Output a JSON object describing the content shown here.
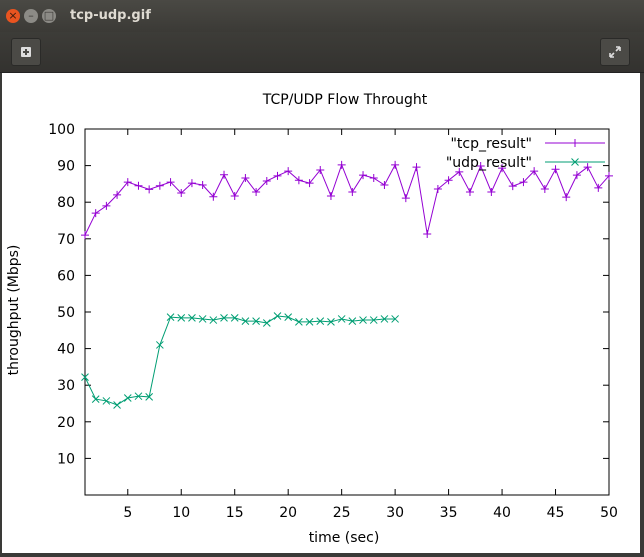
{
  "window": {
    "title": "tcp-udp.gif"
  },
  "chart_data": {
    "type": "line",
    "title": "TCP/UDP Flow Throught",
    "xlabel": "time (sec)",
    "ylabel": "throughput (Mbps)",
    "x": [
      1,
      2,
      3,
      4,
      5,
      6,
      7,
      8,
      9,
      10,
      11,
      12,
      13,
      14,
      15,
      16,
      17,
      18,
      19,
      20,
      21,
      22,
      23,
      24,
      25,
      26,
      27,
      28,
      29,
      30,
      31,
      32,
      33,
      34,
      35,
      36,
      37,
      38,
      39,
      40,
      41,
      42,
      43,
      44,
      45,
      46,
      47,
      48,
      49,
      50
    ],
    "series": [
      {
        "name": "\"tcp_result\"",
        "color": "#9400d3",
        "marker": "+",
        "values": [
          71,
          77,
          79,
          82,
          85.5,
          84.5,
          83.5,
          84.5,
          85.5,
          82.5,
          85.2,
          84.7,
          81.5,
          87.5,
          81.7,
          86.6,
          82.8,
          85.8,
          87.2,
          88.5,
          86,
          85.2,
          88.8,
          81.7,
          90.2,
          82.8,
          87.4,
          86.6,
          84.7,
          90.2,
          81.1,
          89.6,
          71.3,
          83.6,
          86,
          88.3,
          82.8,
          89.9,
          82.8,
          89.3,
          84.4,
          85.5,
          88.5,
          83.6,
          89,
          81.4,
          87.4,
          89.6,
          83.9,
          87.2
        ]
      },
      {
        "name": "\"udp_result\"",
        "color": "#009e73",
        "marker": "x",
        "values": [
          32.2,
          26.2,
          25.7,
          24.6,
          26.5,
          27,
          26.8,
          41,
          48.6,
          48.4,
          48.4,
          48.1,
          47.8,
          48.4,
          48.4,
          47.5,
          47.5,
          47,
          48.9,
          48.6,
          47.3,
          47.3,
          47.5,
          47.3,
          48.1,
          47.5,
          47.8,
          47.8,
          48.1,
          48.1,
          null,
          null,
          null,
          null,
          null,
          null,
          null,
          null,
          null,
          null,
          null,
          null,
          null,
          null,
          null,
          null,
          null,
          null,
          null,
          null
        ]
      }
    ],
    "xlim": [
      1,
      50
    ],
    "xticks": [
      5,
      10,
      15,
      20,
      25,
      30,
      35,
      40,
      45,
      50
    ],
    "ylim": [
      0,
      100
    ],
    "yticks": [
      10,
      20,
      30,
      40,
      50,
      60,
      70,
      80,
      90,
      100
    ],
    "grid": false,
    "legend": "upper right"
  }
}
